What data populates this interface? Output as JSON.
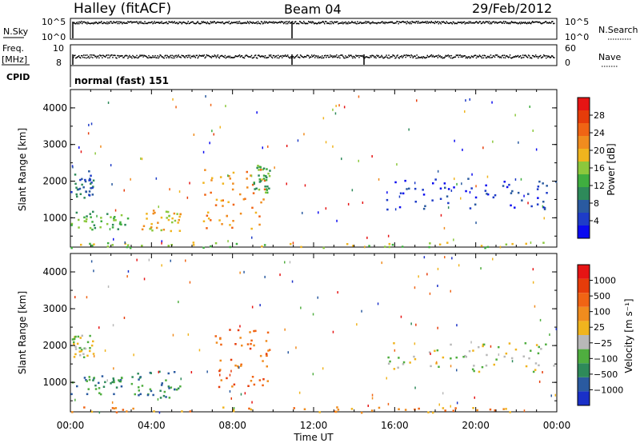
{
  "header": {
    "station": "Halley (fitACF)",
    "beam": "Beam 04",
    "date": "29/Feb/2012"
  },
  "summary": {
    "nsky_label": "N.Sky",
    "nsky_ticks": [
      "10^5",
      "10^0"
    ],
    "nsearch_label": "N.Search",
    "nsearch_ticks": [
      "10^5",
      "10^0"
    ],
    "freq_label_1": "Freq.",
    "freq_label_2": "[MHz]",
    "freq_ticks": [
      "10",
      "8"
    ],
    "nave_label": "Nave",
    "nave_ticks": [
      "60",
      "0"
    ],
    "cpid_label": "CPID",
    "cpid_value": "normal (fast) 151"
  },
  "chart_data": [
    {
      "type": "heatmap",
      "name": "power",
      "ylabel": "Slant Range [km]",
      "xlabel": "Time UT",
      "yticks": [
        "1000",
        "2000",
        "3000",
        "4000"
      ],
      "ylim": [
        200,
        4500
      ],
      "xticks": [
        "00:00",
        "04:00",
        "08:00",
        "12:00",
        "16:00",
        "20:00",
        "00:00"
      ],
      "xlim_hours": [
        0,
        24
      ],
      "colorbar": {
        "label": "Power [dB]",
        "ticks": [
          "4",
          "8",
          "12",
          "16",
          "20",
          "24",
          "28"
        ],
        "colors": [
          "#0a0af0",
          "#1e3cc8",
          "#2a5aa0",
          "#2e8a5a",
          "#3fae3f",
          "#8cc83c",
          "#f0b41e",
          "#f08c1e",
          "#f06414",
          "#e63c0a",
          "#e61414"
        ]
      },
      "clusters": [
        {
          "t": [
            0.0,
            1.1
          ],
          "r": [
            1500,
            2300
          ],
          "level": 2
        },
        {
          "t": [
            0.0,
            3.0
          ],
          "r": [
            700,
            1200
          ],
          "level": 4
        },
        {
          "t": [
            3.5,
            5.4
          ],
          "r": [
            650,
            1250
          ],
          "level": 6
        },
        {
          "t": [
            6.5,
            9.6
          ],
          "r": [
            700,
            2400
          ],
          "level": 7
        },
        {
          "t": [
            9.0,
            9.8
          ],
          "r": [
            1700,
            2500
          ],
          "level": 4
        },
        {
          "t": [
            15.5,
            24.0
          ],
          "r": [
            1250,
            2100
          ],
          "level": 1
        },
        {
          "t": [
            0.0,
            24.0
          ],
          "r": [
            200,
            350
          ],
          "level": 5
        }
      ]
    },
    {
      "type": "heatmap",
      "name": "velocity",
      "ylabel": "Slant Range [km]",
      "xlabel": "Time UT",
      "yticks": [
        "1000",
        "2000",
        "3000",
        "4000"
      ],
      "ylim": [
        200,
        4500
      ],
      "xticks": [
        "00:00",
        "04:00",
        "08:00",
        "12:00",
        "16:00",
        "20:00",
        "00:00"
      ],
      "xlim_hours": [
        0,
        24
      ],
      "colorbar": {
        "label": "Velocity [m s⁻¹]",
        "ticks": [
          "1000",
          "500",
          "100",
          "25",
          "−25",
          "−100",
          "−500",
          "−1000"
        ],
        "colors": [
          "#1a30c8",
          "#2a5aa0",
          "#2e8a5a",
          "#4fae3f",
          "#b8b8b8",
          "#f0b41e",
          "#f08c1e",
          "#f06414",
          "#e63c0a",
          "#e61414"
        ]
      },
      "clusters": [
        {
          "t": [
            0.0,
            1.1
          ],
          "r": [
            1700,
            2300
          ],
          "level": 4
        },
        {
          "t": [
            0.0,
            3.0
          ],
          "r": [
            700,
            1200
          ],
          "level": 2
        },
        {
          "t": [
            3.0,
            5.4
          ],
          "r": [
            600,
            1350
          ],
          "level": 2
        },
        {
          "t": [
            7.0,
            9.8
          ],
          "r": [
            900,
            2500
          ],
          "level": 7
        },
        {
          "t": [
            15.5,
            24.0
          ],
          "r": [
            1300,
            2100
          ],
          "level": 4
        },
        {
          "t": [
            0.0,
            24.0
          ],
          "r": [
            200,
            350
          ],
          "level": 6
        }
      ]
    }
  ]
}
